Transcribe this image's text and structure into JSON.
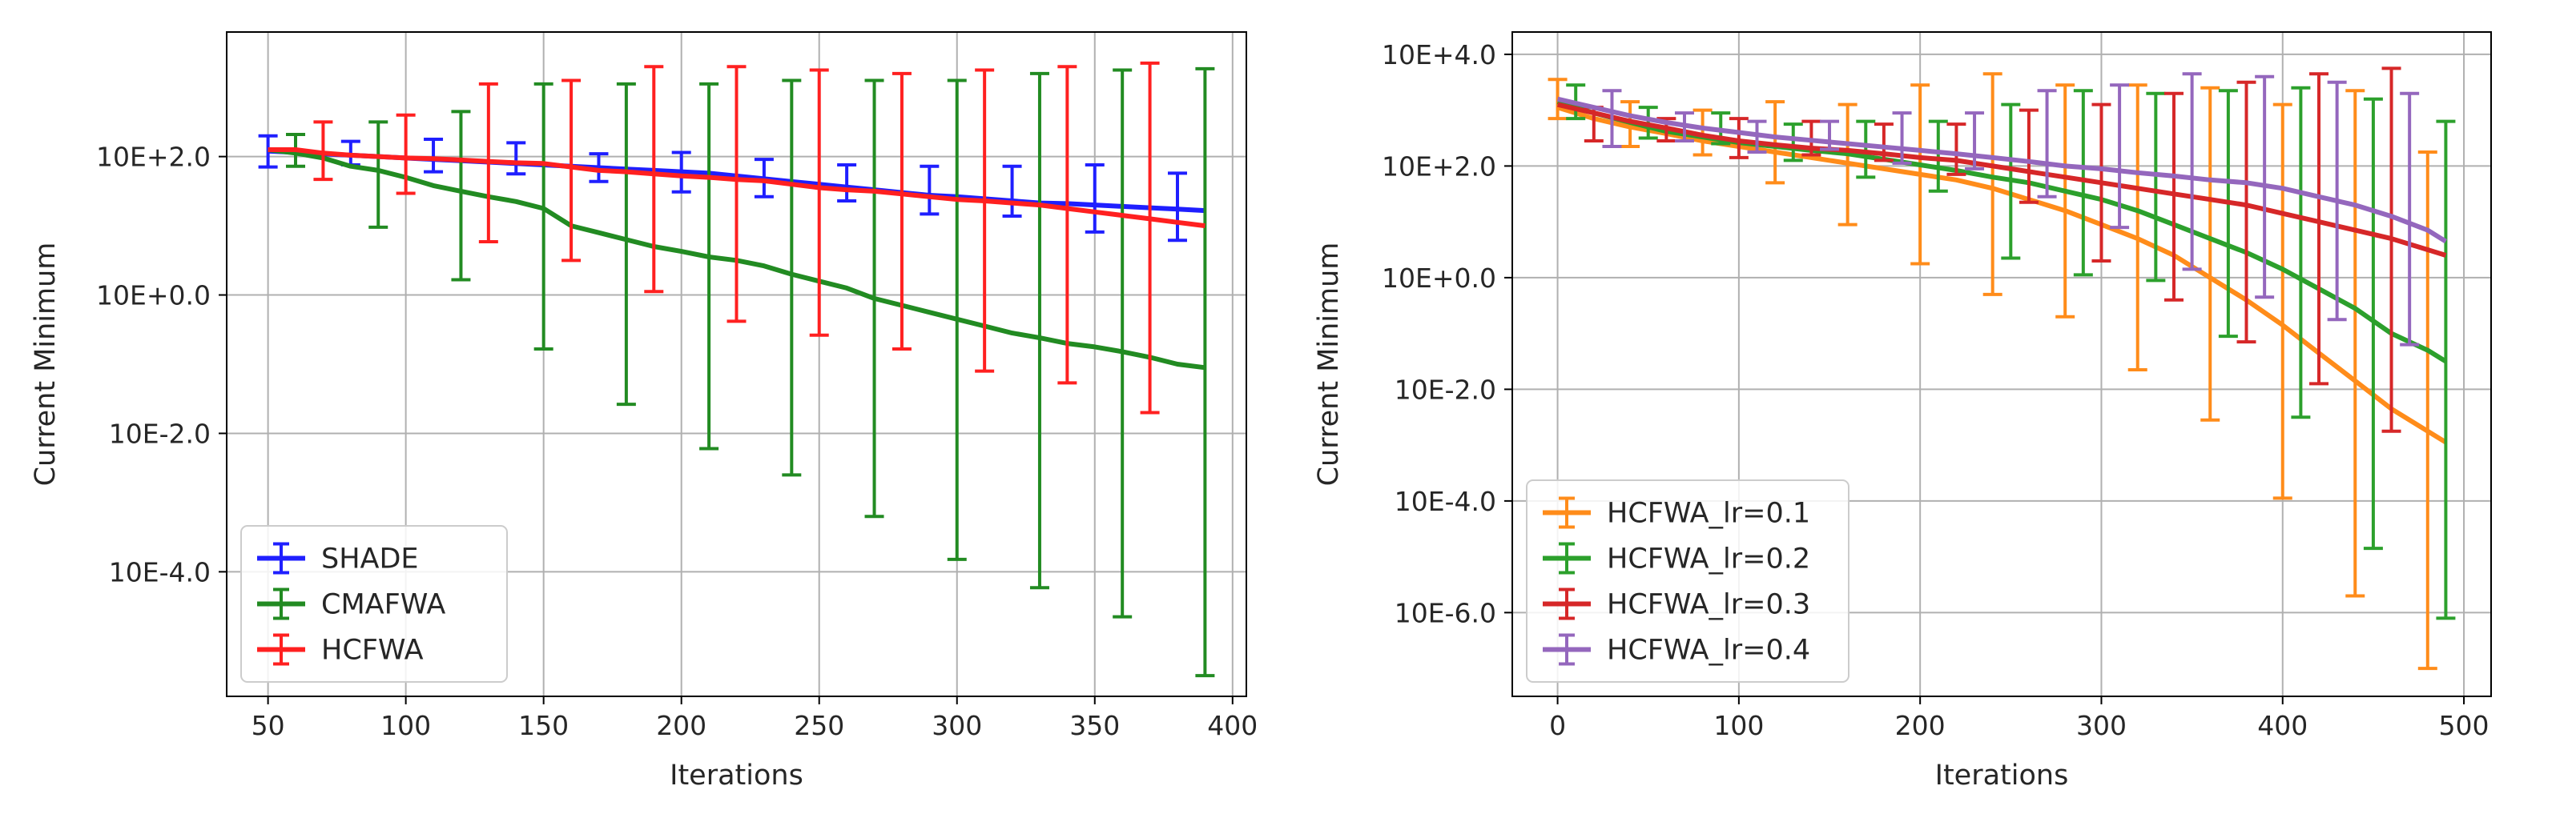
{
  "chart_data": [
    {
      "type": "line",
      "subtype": "errorbar",
      "title": "",
      "xlabel": "Iterations",
      "ylabel": "Current Minimum",
      "yscale": "log",
      "xlim": [
        35,
        405
      ],
      "ylim_log10": [
        -5.8,
        3.8
      ],
      "grid": true,
      "legend_position": "lower-left",
      "x_ticks": [
        50,
        100,
        150,
        200,
        250,
        300,
        350,
        400
      ],
      "y_ticks_log10": [
        2,
        0,
        -2,
        -4
      ],
      "y_tick_labels": [
        "10E+2.0",
        "10E+0.0",
        "10E-2.0",
        "10E-4.0"
      ],
      "series": [
        {
          "name": "SHADE",
          "color": "#1f1fff",
          "x": [
            50,
            60,
            70,
            80,
            90,
            100,
            110,
            120,
            130,
            140,
            150,
            160,
            170,
            180,
            190,
            200,
            210,
            220,
            230,
            240,
            250,
            260,
            270,
            280,
            290,
            300,
            310,
            320,
            330,
            340,
            350,
            360,
            370,
            380,
            390
          ],
          "y_log10": [
            2.08,
            2.06,
            2.04,
            2.02,
            2.0,
            1.98,
            1.96,
            1.94,
            1.92,
            1.9,
            1.88,
            1.86,
            1.84,
            1.82,
            1.8,
            1.78,
            1.76,
            1.72,
            1.68,
            1.64,
            1.6,
            1.56,
            1.52,
            1.48,
            1.44,
            1.42,
            1.39,
            1.36,
            1.33,
            1.32,
            1.3,
            1.28,
            1.26,
            1.24,
            1.22
          ],
          "errorbar_x": [
            50,
            80,
            110,
            140,
            170,
            200,
            230,
            260,
            290,
            320,
            350,
            380
          ],
          "err_lower_log10": [
            1.85,
            1.88,
            1.78,
            1.75,
            1.64,
            1.49,
            1.42,
            1.36,
            1.17,
            1.14,
            0.91,
            0.79
          ],
          "err_upper_log10": [
            2.3,
            2.22,
            2.25,
            2.2,
            2.04,
            2.06,
            1.96,
            1.88,
            1.86,
            1.86,
            1.88,
            1.76
          ]
        },
        {
          "name": "CMAFWA",
          "color": "#228b22",
          "x": [
            50,
            60,
            70,
            80,
            90,
            100,
            110,
            120,
            130,
            140,
            150,
            160,
            170,
            180,
            190,
            200,
            210,
            220,
            230,
            240,
            250,
            260,
            270,
            280,
            290,
            300,
            310,
            320,
            330,
            340,
            350,
            360,
            370,
            380,
            390
          ],
          "y_log10": [
            2.1,
            2.05,
            1.98,
            1.86,
            1.8,
            1.7,
            1.58,
            1.5,
            1.42,
            1.35,
            1.25,
            1.0,
            0.9,
            0.8,
            0.7,
            0.63,
            0.55,
            0.5,
            0.42,
            0.3,
            0.2,
            0.1,
            -0.05,
            -0.15,
            -0.25,
            -0.35,
            -0.45,
            -0.55,
            -0.62,
            -0.7,
            -0.75,
            -0.82,
            -0.9,
            -1.0,
            -1.05
          ],
          "errorbar_x": [
            60,
            90,
            120,
            150,
            180,
            210,
            240,
            270,
            300,
            330,
            360,
            390
          ],
          "err_lower_log10": [
            1.86,
            0.98,
            0.22,
            -0.78,
            -1.58,
            -2.22,
            -2.6,
            -3.2,
            -3.82,
            -4.23,
            -4.65,
            -5.5
          ],
          "err_upper_log10": [
            2.32,
            2.5,
            2.65,
            3.05,
            3.05,
            3.05,
            3.1,
            3.1,
            3.1,
            3.2,
            3.25,
            3.27
          ]
        },
        {
          "name": "HCFWA",
          "color": "#ff2020",
          "x": [
            50,
            60,
            70,
            80,
            90,
            100,
            110,
            120,
            130,
            140,
            150,
            160,
            170,
            180,
            190,
            200,
            210,
            220,
            230,
            240,
            250,
            260,
            270,
            280,
            290,
            300,
            310,
            320,
            330,
            340,
            350,
            360,
            370,
            380,
            390
          ],
          "y_log10": [
            2.1,
            2.1,
            2.05,
            2.02,
            2.0,
            1.98,
            1.97,
            1.95,
            1.93,
            1.91,
            1.9,
            1.85,
            1.8,
            1.78,
            1.75,
            1.72,
            1.7,
            1.67,
            1.65,
            1.6,
            1.55,
            1.52,
            1.5,
            1.46,
            1.42,
            1.38,
            1.36,
            1.33,
            1.3,
            1.25,
            1.2,
            1.15,
            1.1,
            1.05,
            1.0
          ],
          "errorbar_x": [
            70,
            100,
            130,
            160,
            190,
            220,
            250,
            280,
            310,
            340,
            370
          ],
          "err_lower_log10": [
            1.67,
            1.47,
            0.77,
            0.5,
            0.05,
            -0.38,
            -0.58,
            -0.78,
            -1.1,
            -1.27,
            -1.7
          ],
          "err_upper_log10": [
            2.5,
            2.6,
            3.05,
            3.1,
            3.3,
            3.3,
            3.25,
            3.2,
            3.25,
            3.3,
            3.35
          ]
        }
      ]
    },
    {
      "type": "line",
      "subtype": "errorbar",
      "title": "",
      "xlabel": "Iterations",
      "ylabel": "Current Minimum",
      "yscale": "log",
      "xlim": [
        -25,
        515
      ],
      "ylim_log10": [
        -7.5,
        4.4
      ],
      "grid": true,
      "legend_position": "lower-left",
      "x_ticks": [
        0,
        100,
        200,
        300,
        400,
        500
      ],
      "y_ticks_log10": [
        4,
        2,
        0,
        -2,
        -4,
        -6
      ],
      "y_tick_labels": [
        "10E+4.0",
        "10E+2.0",
        "10E+0.0",
        "10E-2.0",
        "10E-4.0",
        "10E-6.0"
      ],
      "series": [
        {
          "name": "HCFWA_lr=0.1",
          "color": "#ff8c1a",
          "x": [
            0,
            20,
            40,
            60,
            80,
            100,
            120,
            140,
            160,
            180,
            200,
            220,
            240,
            260,
            280,
            300,
            320,
            340,
            360,
            380,
            400,
            420,
            440,
            460,
            480,
            490
          ],
          "y_log10": [
            3.05,
            2.85,
            2.7,
            2.58,
            2.45,
            2.35,
            2.25,
            2.15,
            2.05,
            1.95,
            1.85,
            1.75,
            1.6,
            1.4,
            1.2,
            0.95,
            0.7,
            0.4,
            0.0,
            -0.4,
            -0.85,
            -1.35,
            -1.85,
            -2.35,
            -2.75,
            -2.95
          ],
          "errorbar_x": [
            0,
            40,
            80,
            120,
            160,
            200,
            240,
            280,
            320,
            360,
            400,
            440,
            480
          ],
          "err_lower_log10": [
            2.85,
            2.35,
            2.2,
            1.7,
            0.95,
            0.25,
            -0.3,
            -0.7,
            -1.65,
            -2.55,
            -3.95,
            -5.7,
            -7.0
          ],
          "err_upper_log10": [
            3.55,
            3.15,
            3.0,
            3.15,
            3.1,
            3.45,
            3.65,
            3.45,
            3.45,
            3.4,
            3.1,
            3.35,
            2.25
          ]
        },
        {
          "name": "HCFWA_lr=0.2",
          "color": "#2ca02c",
          "x": [
            0,
            20,
            40,
            60,
            80,
            100,
            120,
            140,
            160,
            180,
            200,
            220,
            240,
            260,
            280,
            300,
            320,
            340,
            360,
            380,
            400,
            420,
            440,
            460,
            480,
            490
          ],
          "y_log10": [
            3.15,
            2.95,
            2.78,
            2.62,
            2.52,
            2.42,
            2.35,
            2.28,
            2.22,
            2.12,
            2.02,
            1.92,
            1.8,
            1.7,
            1.55,
            1.4,
            1.2,
            0.95,
            0.7,
            0.45,
            0.15,
            -0.2,
            -0.55,
            -1.0,
            -1.3,
            -1.5
          ],
          "errorbar_x": [
            10,
            50,
            90,
            130,
            170,
            210,
            250,
            290,
            330,
            370,
            410,
            450,
            490
          ],
          "err_lower_log10": [
            2.85,
            2.5,
            2.4,
            2.1,
            1.8,
            1.55,
            0.35,
            0.05,
            -0.05,
            -1.05,
            -2.5,
            -4.85,
            -6.1
          ],
          "err_upper_log10": [
            3.45,
            3.05,
            2.95,
            2.75,
            2.8,
            2.8,
            3.1,
            3.35,
            3.3,
            3.35,
            3.4,
            3.2,
            2.8
          ]
        },
        {
          "name": "HCFWA_lr=0.3",
          "color": "#d62728",
          "x": [
            0,
            20,
            40,
            60,
            80,
            100,
            120,
            140,
            160,
            180,
            200,
            220,
            240,
            260,
            280,
            300,
            320,
            340,
            360,
            380,
            400,
            420,
            440,
            460,
            480,
            490
          ],
          "y_log10": [
            3.1,
            2.95,
            2.8,
            2.68,
            2.55,
            2.45,
            2.38,
            2.32,
            2.28,
            2.22,
            2.15,
            2.1,
            2.0,
            1.9,
            1.8,
            1.7,
            1.6,
            1.5,
            1.4,
            1.3,
            1.15,
            1.0,
            0.85,
            0.7,
            0.5,
            0.4
          ],
          "errorbar_x": [
            20,
            60,
            100,
            140,
            180,
            220,
            260,
            300,
            340,
            380,
            420,
            460
          ],
          "err_lower_log10": [
            2.45,
            2.45,
            2.15,
            2.2,
            2.1,
            1.85,
            1.35,
            0.3,
            -0.4,
            -1.15,
            -1.9,
            -2.75
          ],
          "err_upper_log10": [
            3.05,
            2.85,
            2.85,
            2.8,
            2.75,
            2.75,
            3.0,
            3.1,
            3.3,
            3.5,
            3.65,
            3.75
          ]
        },
        {
          "name": "HCFWA_lr=0.4",
          "color": "#9467bd",
          "x": [
            0,
            20,
            40,
            60,
            80,
            100,
            120,
            140,
            160,
            180,
            200,
            220,
            240,
            260,
            280,
            300,
            320,
            340,
            360,
            380,
            400,
            420,
            440,
            460,
            480,
            490
          ],
          "y_log10": [
            3.2,
            3.05,
            2.9,
            2.78,
            2.68,
            2.6,
            2.52,
            2.46,
            2.4,
            2.34,
            2.28,
            2.22,
            2.15,
            2.08,
            2.0,
            1.95,
            1.88,
            1.82,
            1.75,
            1.7,
            1.6,
            1.45,
            1.3,
            1.1,
            0.85,
            0.65
          ],
          "errorbar_x": [
            30,
            70,
            110,
            150,
            190,
            230,
            270,
            310,
            350,
            390,
            430,
            470
          ],
          "err_lower_log10": [
            2.35,
            2.45,
            2.25,
            2.3,
            2.05,
            1.95,
            1.45,
            0.9,
            0.15,
            -0.35,
            -0.75,
            -1.2
          ],
          "err_upper_log10": [
            3.35,
            2.95,
            2.8,
            2.8,
            2.95,
            2.95,
            3.35,
            3.45,
            3.65,
            3.6,
            3.5,
            3.3
          ]
        }
      ]
    }
  ]
}
